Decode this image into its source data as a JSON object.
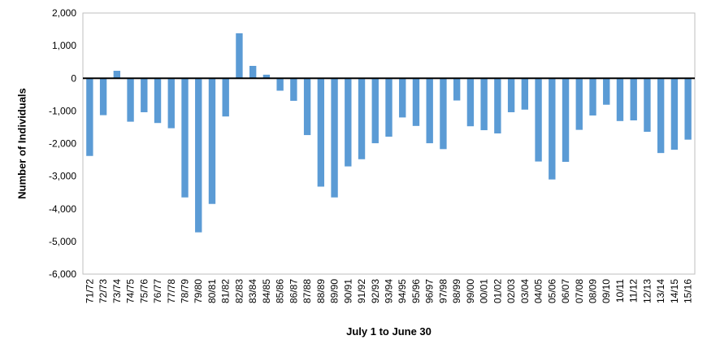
{
  "chart_data": {
    "type": "bar",
    "title": "",
    "xlabel": "July 1 to June 30",
    "ylabel": "Number of Individuals",
    "ylim": [
      -6000,
      2000
    ],
    "yticks": [
      2000,
      1000,
      0,
      -1000,
      -2000,
      -3000,
      -4000,
      -5000,
      -6000
    ],
    "ytick_labels": [
      "2,000",
      "1,000",
      "0",
      "-1,000",
      "-2,000",
      "-3,000",
      "-4,000",
      "-5,000",
      "-6,000"
    ],
    "grid": false,
    "legend": "none",
    "bar_color": "#5B9BD5",
    "categories": [
      "71/72",
      "72/73",
      "73/74",
      "74/75",
      "75/76",
      "76/77",
      "77/78",
      "78/79",
      "79/80",
      "80/81",
      "81/82",
      "82/83",
      "83/84",
      "84/85",
      "85/86",
      "86/87",
      "87/88",
      "88/89",
      "89/90",
      "90/91",
      "91/92",
      "92/93",
      "93/94",
      "94/95",
      "95/96",
      "96/97",
      "97/98",
      "98/99",
      "99/00",
      "00/01",
      "01/02",
      "02/03",
      "03/04",
      "04/05",
      "05/06",
      "06/07",
      "07/08",
      "08/09",
      "09/10",
      "10/11",
      "11/12",
      "12/13",
      "13/14",
      "14/15",
      "15/16"
    ],
    "values": [
      -2380,
      -1130,
      230,
      -1330,
      -1040,
      -1370,
      -1530,
      -3650,
      -4720,
      -3850,
      -1170,
      1380,
      380,
      110,
      -380,
      -690,
      -1740,
      -3320,
      -3650,
      -2700,
      -2480,
      -1990,
      -1790,
      -1200,
      -1460,
      -1990,
      -2170,
      -680,
      -1470,
      -1590,
      -1690,
      -1040,
      -960,
      -2550,
      -3100,
      -2560,
      -1580,
      -1140,
      -810,
      -1310,
      -1290,
      -1640,
      -2290,
      -2190,
      -1880
    ]
  }
}
